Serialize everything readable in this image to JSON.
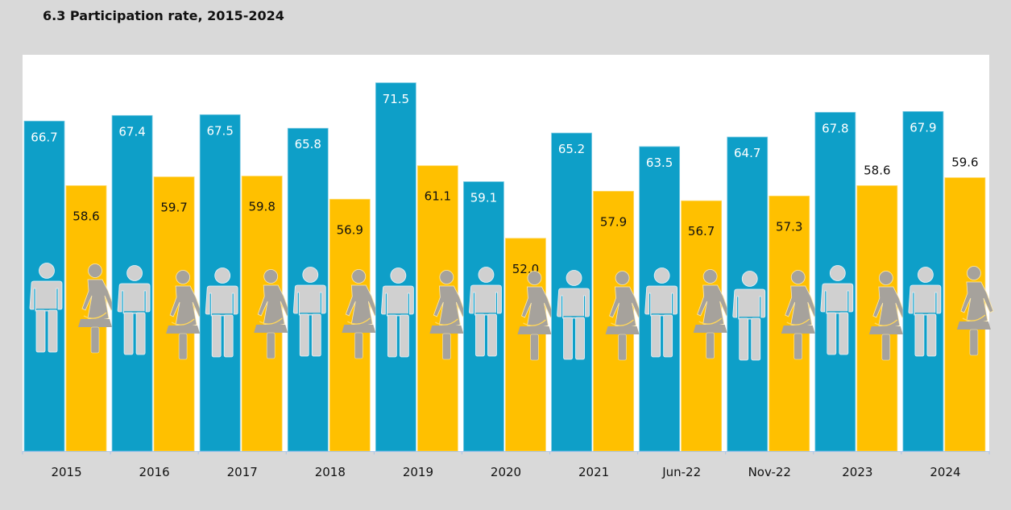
{
  "title": "6.3  Participation rate, 2015-2024",
  "colors": {
    "page_background": "#D9D9D9",
    "plot_background": "#FFFFFF",
    "male": "#0E9FC8",
    "female": "#FFC000",
    "male_icon": "#D0D0D0",
    "female_icon": "#A6A29C",
    "axis": "#A9C4E8"
  },
  "icons": {
    "male": "man-icon",
    "female": "woman-icon"
  },
  "chart_data": {
    "type": "bar",
    "title": "6.3  Participation rate, 2015-2024",
    "xlabel": "",
    "ylabel": "",
    "categories": [
      "2015",
      "2016",
      "2017",
      "2018",
      "2019",
      "2020",
      "2021",
      "Jun-22",
      "Nov-22",
      "2023",
      "2024"
    ],
    "series": [
      {
        "name": "Male",
        "values": [
          66.7,
          67.4,
          67.5,
          65.8,
          71.5,
          59.1,
          65.2,
          63.5,
          64.7,
          67.8,
          67.9
        ]
      },
      {
        "name": "Female",
        "values": [
          58.6,
          59.7,
          59.8,
          56.9,
          61.1,
          52.0,
          57.9,
          56.7,
          57.3,
          58.6,
          59.6
        ]
      }
    ],
    "ylim": [
      25.3,
      75
    ],
    "grid": false,
    "legend": "none",
    "data_labels": true
  }
}
